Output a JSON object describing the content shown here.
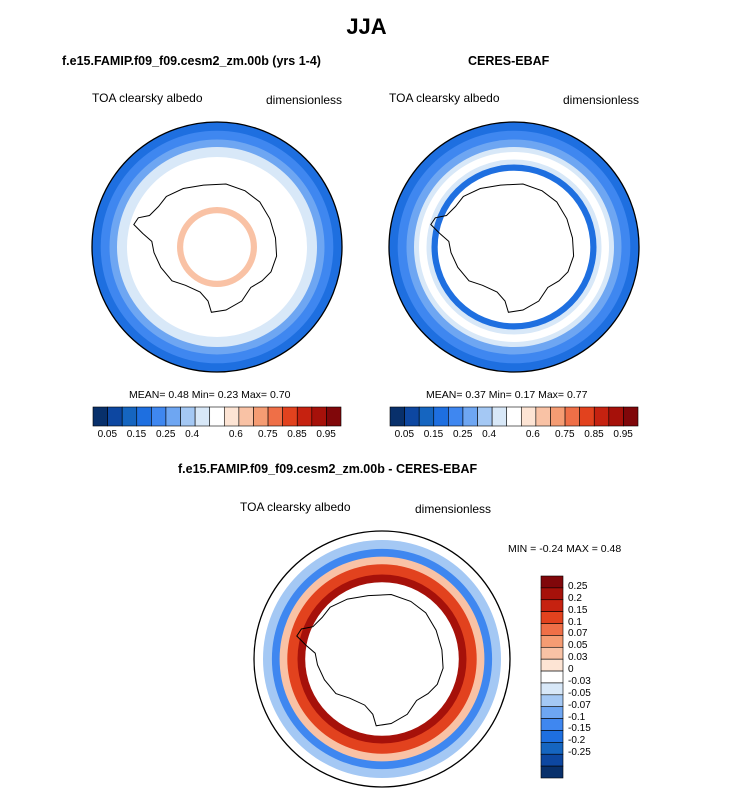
{
  "title": "JJA",
  "chart_data": [
    {
      "type": "polar_contour_map",
      "title": "f.e15.FAMIP.f09_f09.cesm2_zm.00b (yrs 1-4)",
      "left_label": "TOA clearsky albedo",
      "right_label": "dimensionless",
      "stats": {
        "mean": "0.48",
        "min": "0.23",
        "max": "0.70"
      },
      "rings": [
        {
          "r_frac": 1.0,
          "value": 0.22
        },
        {
          "r_frac": 0.93,
          "value": 0.27
        },
        {
          "r_frac": 0.86,
          "value": 0.33
        },
        {
          "r_frac": 0.8,
          "value": 0.42
        },
        {
          "r_frac": 0.72,
          "value": 0.55
        },
        {
          "r_frac": 0.32,
          "value": 0.62
        },
        {
          "r_frac": 0.27,
          "value": null
        }
      ]
    },
    {
      "type": "polar_contour_map",
      "title": "CERES-EBAF",
      "left_label": "TOA clearsky albedo",
      "right_label": "dimensionless",
      "stats": {
        "mean": "0.37",
        "min": "0.17",
        "max": "0.77"
      },
      "rings": [
        {
          "r_frac": 1.0,
          "value": 0.22
        },
        {
          "r_frac": 0.93,
          "value": 0.27
        },
        {
          "r_frac": 0.86,
          "value": 0.33
        },
        {
          "r_frac": 0.8,
          "value": 0.45
        },
        {
          "r_frac": 0.76,
          "value": 0.52
        },
        {
          "r_frac": 0.7,
          "value": 0.42
        },
        {
          "r_frac": 0.66,
          "value": 0.25
        },
        {
          "r_frac": 0.61,
          "value": null
        }
      ]
    },
    {
      "type": "polar_contour_map",
      "title": "f.e15.FAMIP.f09_f09.cesm2_zm.00b - CERES-EBAF",
      "left_label": "TOA clearsky albedo",
      "right_label": "dimensionless",
      "stats_text": "MIN =  -0.24 MAX =   0.48",
      "rings": [
        {
          "r_frac": 1.0,
          "value": -0.01
        },
        {
          "r_frac": 0.93,
          "value": -0.06
        },
        {
          "r_frac": 0.86,
          "value": -0.12
        },
        {
          "r_frac": 0.8,
          "value": 0.04
        },
        {
          "r_frac": 0.74,
          "value": 0.12
        },
        {
          "r_frac": 0.66,
          "value": 0.22
        },
        {
          "r_frac": 0.6,
          "value": null
        }
      ]
    }
  ],
  "colorbar_abs": {
    "colors": [
      "#08306b",
      "#0d47a1",
      "#1565c0",
      "#1e6fe0",
      "#3f87f0",
      "#6ea6f2",
      "#a4c8f4",
      "#d8e8f8",
      "#ffffff",
      "#fde4d4",
      "#f9c2a5",
      "#f59c73",
      "#ef6f47",
      "#e2421e",
      "#c62210",
      "#a6110a",
      "#80070a"
    ],
    "ticks": [
      "0.05",
      "0.15",
      "0.25",
      "0.4",
      "0.6",
      "0.75",
      "0.85",
      "0.95"
    ]
  },
  "colorbar_diff": {
    "colors": [
      "#80070a",
      "#a6110a",
      "#c62210",
      "#e2421e",
      "#ef6f47",
      "#f59c73",
      "#f9c2a5",
      "#fde4d4",
      "#ffffff",
      "#d8e8f8",
      "#a4c8f4",
      "#6ea6f2",
      "#3f87f0",
      "#1e6fe0",
      "#1565c0",
      "#0d47a1",
      "#08306b"
    ],
    "ticks": [
      "0.25",
      "0.2",
      "0.15",
      "0.1",
      "0.07",
      "0.05",
      "0.03",
      "0",
      "-0.03",
      "-0.05",
      "-0.07",
      "-0.1",
      "-0.15",
      "-0.2",
      "-0.25"
    ]
  }
}
